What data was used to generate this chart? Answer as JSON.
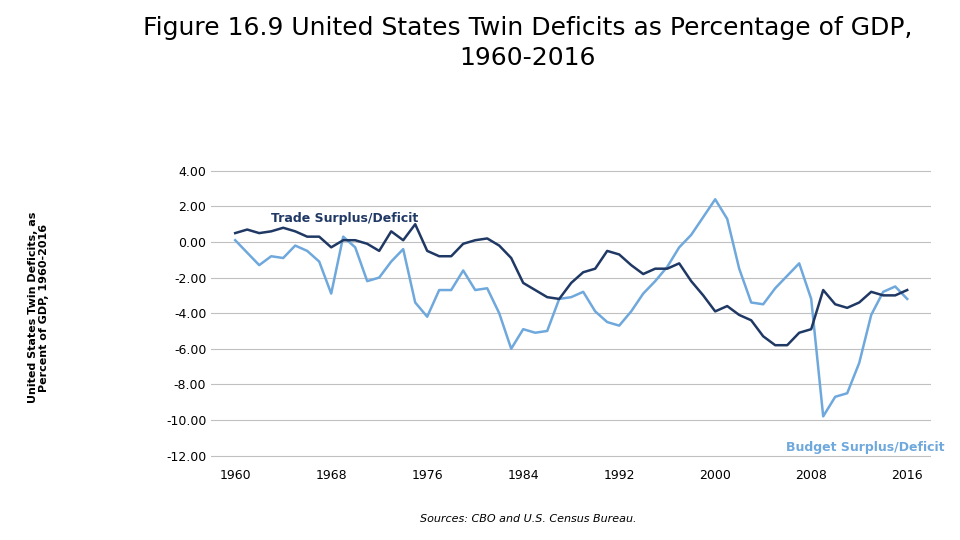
{
  "title": "Figure 16.9 United States Twin Deficits as Percentage of GDP,\n1960-2016",
  "ylabel": "United States Twin Deficits, as\nPercent of GDP, 1960-2016",
  "source_text": "Sources: CBO and U.S. Census Bureau.",
  "trade_label": "Trade Surplus/Deficit",
  "budget_label": "Budget Surplus/Deficit",
  "trade_color": "#1f3864",
  "budget_color": "#6fa8dc",
  "background_color": "#ffffff",
  "ylim": [
    -12.5,
    4.8
  ],
  "yticks": [
    4.0,
    2.0,
    0.0,
    -2.0,
    -4.0,
    -6.0,
    -8.0,
    -10.0,
    -12.0
  ],
  "xticks": [
    1960,
    1968,
    1976,
    1984,
    1992,
    2000,
    2008,
    2016
  ],
  "xlim": [
    1958,
    2018
  ],
  "trade_data": {
    "years": [
      1960,
      1961,
      1962,
      1963,
      1964,
      1965,
      1966,
      1967,
      1968,
      1969,
      1970,
      1971,
      1972,
      1973,
      1974,
      1975,
      1976,
      1977,
      1978,
      1979,
      1980,
      1981,
      1982,
      1983,
      1984,
      1985,
      1986,
      1987,
      1988,
      1989,
      1990,
      1991,
      1992,
      1993,
      1994,
      1995,
      1996,
      1997,
      1998,
      1999,
      2000,
      2001,
      2002,
      2003,
      2004,
      2005,
      2006,
      2007,
      2008,
      2009,
      2010,
      2011,
      2012,
      2013,
      2014,
      2015,
      2016
    ],
    "values": [
      0.5,
      0.7,
      0.5,
      0.6,
      0.8,
      0.6,
      0.3,
      0.3,
      -0.3,
      0.1,
      0.1,
      -0.1,
      -0.5,
      0.6,
      0.1,
      1.0,
      -0.5,
      -0.8,
      -0.8,
      -0.1,
      0.1,
      0.2,
      -0.2,
      -0.9,
      -2.3,
      -2.7,
      -3.1,
      -3.2,
      -2.3,
      -1.7,
      -1.5,
      -0.5,
      -0.7,
      -1.3,
      -1.8,
      -1.5,
      -1.5,
      -1.2,
      -2.2,
      -3.0,
      -3.9,
      -3.6,
      -4.1,
      -4.4,
      -5.3,
      -5.8,
      -5.8,
      -5.1,
      -4.9,
      -2.7,
      -3.5,
      -3.7,
      -3.4,
      -2.8,
      -3.0,
      -3.0,
      -2.7
    ]
  },
  "budget_data": {
    "years": [
      1960,
      1961,
      1962,
      1963,
      1964,
      1965,
      1966,
      1967,
      1968,
      1969,
      1970,
      1971,
      1972,
      1973,
      1974,
      1975,
      1976,
      1977,
      1978,
      1979,
      1980,
      1981,
      1982,
      1983,
      1984,
      1985,
      1986,
      1987,
      1988,
      1989,
      1990,
      1991,
      1992,
      1993,
      1994,
      1995,
      1996,
      1997,
      1998,
      1999,
      2000,
      2001,
      2002,
      2003,
      2004,
      2005,
      2006,
      2007,
      2008,
      2009,
      2010,
      2011,
      2012,
      2013,
      2014,
      2015,
      2016
    ],
    "values": [
      0.1,
      -0.6,
      -1.3,
      -0.8,
      -0.9,
      -0.2,
      -0.5,
      -1.1,
      -2.9,
      0.3,
      -0.3,
      -2.2,
      -2.0,
      -1.1,
      -0.4,
      -3.4,
      -4.2,
      -2.7,
      -2.7,
      -1.6,
      -2.7,
      -2.6,
      -4.0,
      -6.0,
      -4.9,
      -5.1,
      -5.0,
      -3.2,
      -3.1,
      -2.8,
      -3.9,
      -4.5,
      -4.7,
      -3.9,
      -2.9,
      -2.2,
      -1.4,
      -0.3,
      0.4,
      1.4,
      2.4,
      1.3,
      -1.5,
      -3.4,
      -3.5,
      -2.6,
      -1.9,
      -1.2,
      -3.2,
      -9.8,
      -8.7,
      -8.5,
      -6.8,
      -4.1,
      -2.8,
      -2.5,
      -3.2
    ]
  },
  "title_fontsize": 18,
  "label_fontsize": 9,
  "tick_fontsize": 9,
  "ylabel_fontsize": 8,
  "source_fontsize": 8
}
